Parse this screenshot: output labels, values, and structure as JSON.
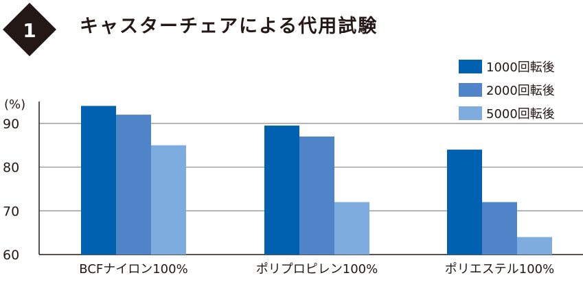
{
  "header": {
    "badge_number": "1",
    "title": "キャスターチェアによる代用試験"
  },
  "chart_data": {
    "type": "bar",
    "title": "キャスターチェアによる代用試験",
    "ylabel": "(%)",
    "xlabel": "",
    "categories": [
      "BCFナイロン100%",
      "ポリプロピレン100%",
      "ポリエステル100%"
    ],
    "series": [
      {
        "name": "1000回転後",
        "color": "#0061b0",
        "values": [
          94,
          89.5,
          84
        ]
      },
      {
        "name": "2000回転後",
        "color": "#4f85c8",
        "values": [
          92,
          87,
          72
        ]
      },
      {
        "name": "5000回転後",
        "color": "#7eacdf",
        "values": [
          85,
          72,
          64
        ]
      }
    ],
    "ylim": [
      60,
      95
    ],
    "yticks": [
      60,
      70,
      80,
      90
    ],
    "grid": true,
    "legend_position": "top-right"
  }
}
